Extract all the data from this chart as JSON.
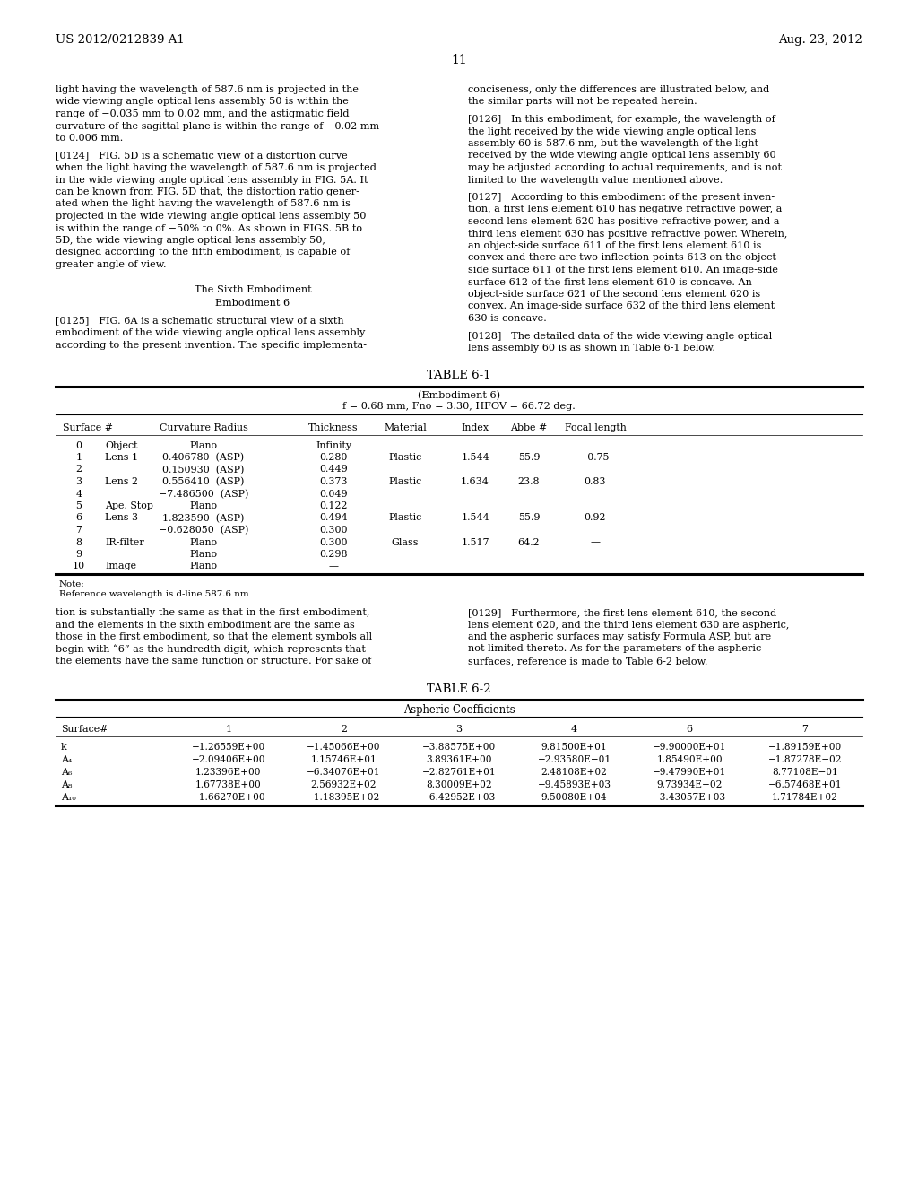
{
  "header_left": "US 2012/0212839 A1",
  "header_right": "Aug. 23, 2012",
  "page_number": "11",
  "background_color": "#ffffff",
  "table1_title": "TABLE 6-1",
  "table1_subtitle1": "(Embodiment 6)",
  "table1_subtitle2": "f = 0.68 mm, Fno = 3.30, HFOV = 66.72 deg.",
  "table1_rows": [
    [
      "0",
      "Object",
      "Plano",
      "Infinity",
      "",
      "",
      "",
      ""
    ],
    [
      "1",
      "Lens 1",
      "0.406780  (ASP)",
      "0.280",
      "Plastic",
      "1.544",
      "55.9",
      "−0.75"
    ],
    [
      "2",
      "",
      "0.150930  (ASP)",
      "0.449",
      "",
      "",
      "",
      ""
    ],
    [
      "3",
      "Lens 2",
      "0.556410  (ASP)",
      "0.373",
      "Plastic",
      "1.634",
      "23.8",
      "0.83"
    ],
    [
      "4",
      "",
      "−7.486500  (ASP)",
      "0.049",
      "",
      "",
      "",
      ""
    ],
    [
      "5",
      "Ape. Stop",
      "Plano",
      "0.122",
      "",
      "",
      "",
      ""
    ],
    [
      "6",
      "Lens 3",
      "1.823590  (ASP)",
      "0.494",
      "Plastic",
      "1.544",
      "55.9",
      "0.92"
    ],
    [
      "7",
      "",
      "−0.628050  (ASP)",
      "0.300",
      "",
      "",
      "",
      ""
    ],
    [
      "8",
      "IR-filter",
      "Plano",
      "0.300",
      "Glass",
      "1.517",
      "64.2",
      "—"
    ],
    [
      "9",
      "",
      "Plano",
      "0.298",
      "",
      "",
      "",
      ""
    ],
    [
      "10",
      "Image",
      "Plano",
      "—",
      "",
      "",
      "",
      ""
    ]
  ],
  "note1": "Note:",
  "note2": "Reference wavelength is d-line 587.6 nm",
  "table2_title": "TABLE 6-2",
  "table2_subtitle": "Aspheric Coefficients",
  "table2_headers": [
    "Surface#",
    "1",
    "2",
    "3",
    "4",
    "6",
    "7"
  ],
  "table2_rows": [
    [
      "k",
      "−1.26559E+00",
      "−1.45066E+00",
      "−3.88575E+00",
      "9.81500E+01",
      "−9.90000E+01",
      "−1.89159E+00"
    ],
    [
      "A4",
      "−2.09406E+00",
      "1.15746E+01",
      "3.89361E+00",
      "−2.93580E−01",
      "1.85490E+00",
      "−1.87278E−02"
    ],
    [
      "A6",
      "1.23396E+00",
      "−6.34076E+01",
      "−2.82761E+01",
      "2.48108E+02",
      "−9.47990E+01",
      "8.77108E−01"
    ],
    [
      "A8",
      "1.67738E+00",
      "2.56932E+02",
      "8.30009E+02",
      "−9.45893E+03",
      "9.73934E+02",
      "−6.57468E+01"
    ],
    [
      "A10",
      "−1.66270E+00",
      "−1.18395E+02",
      "−6.42952E+03",
      "9.50080E+04",
      "−3.43057E+03",
      "1.71784E+02"
    ]
  ],
  "table2_row_labels": [
    "k",
    "A₄",
    "A₆",
    "A₈",
    "A₁₀"
  ]
}
